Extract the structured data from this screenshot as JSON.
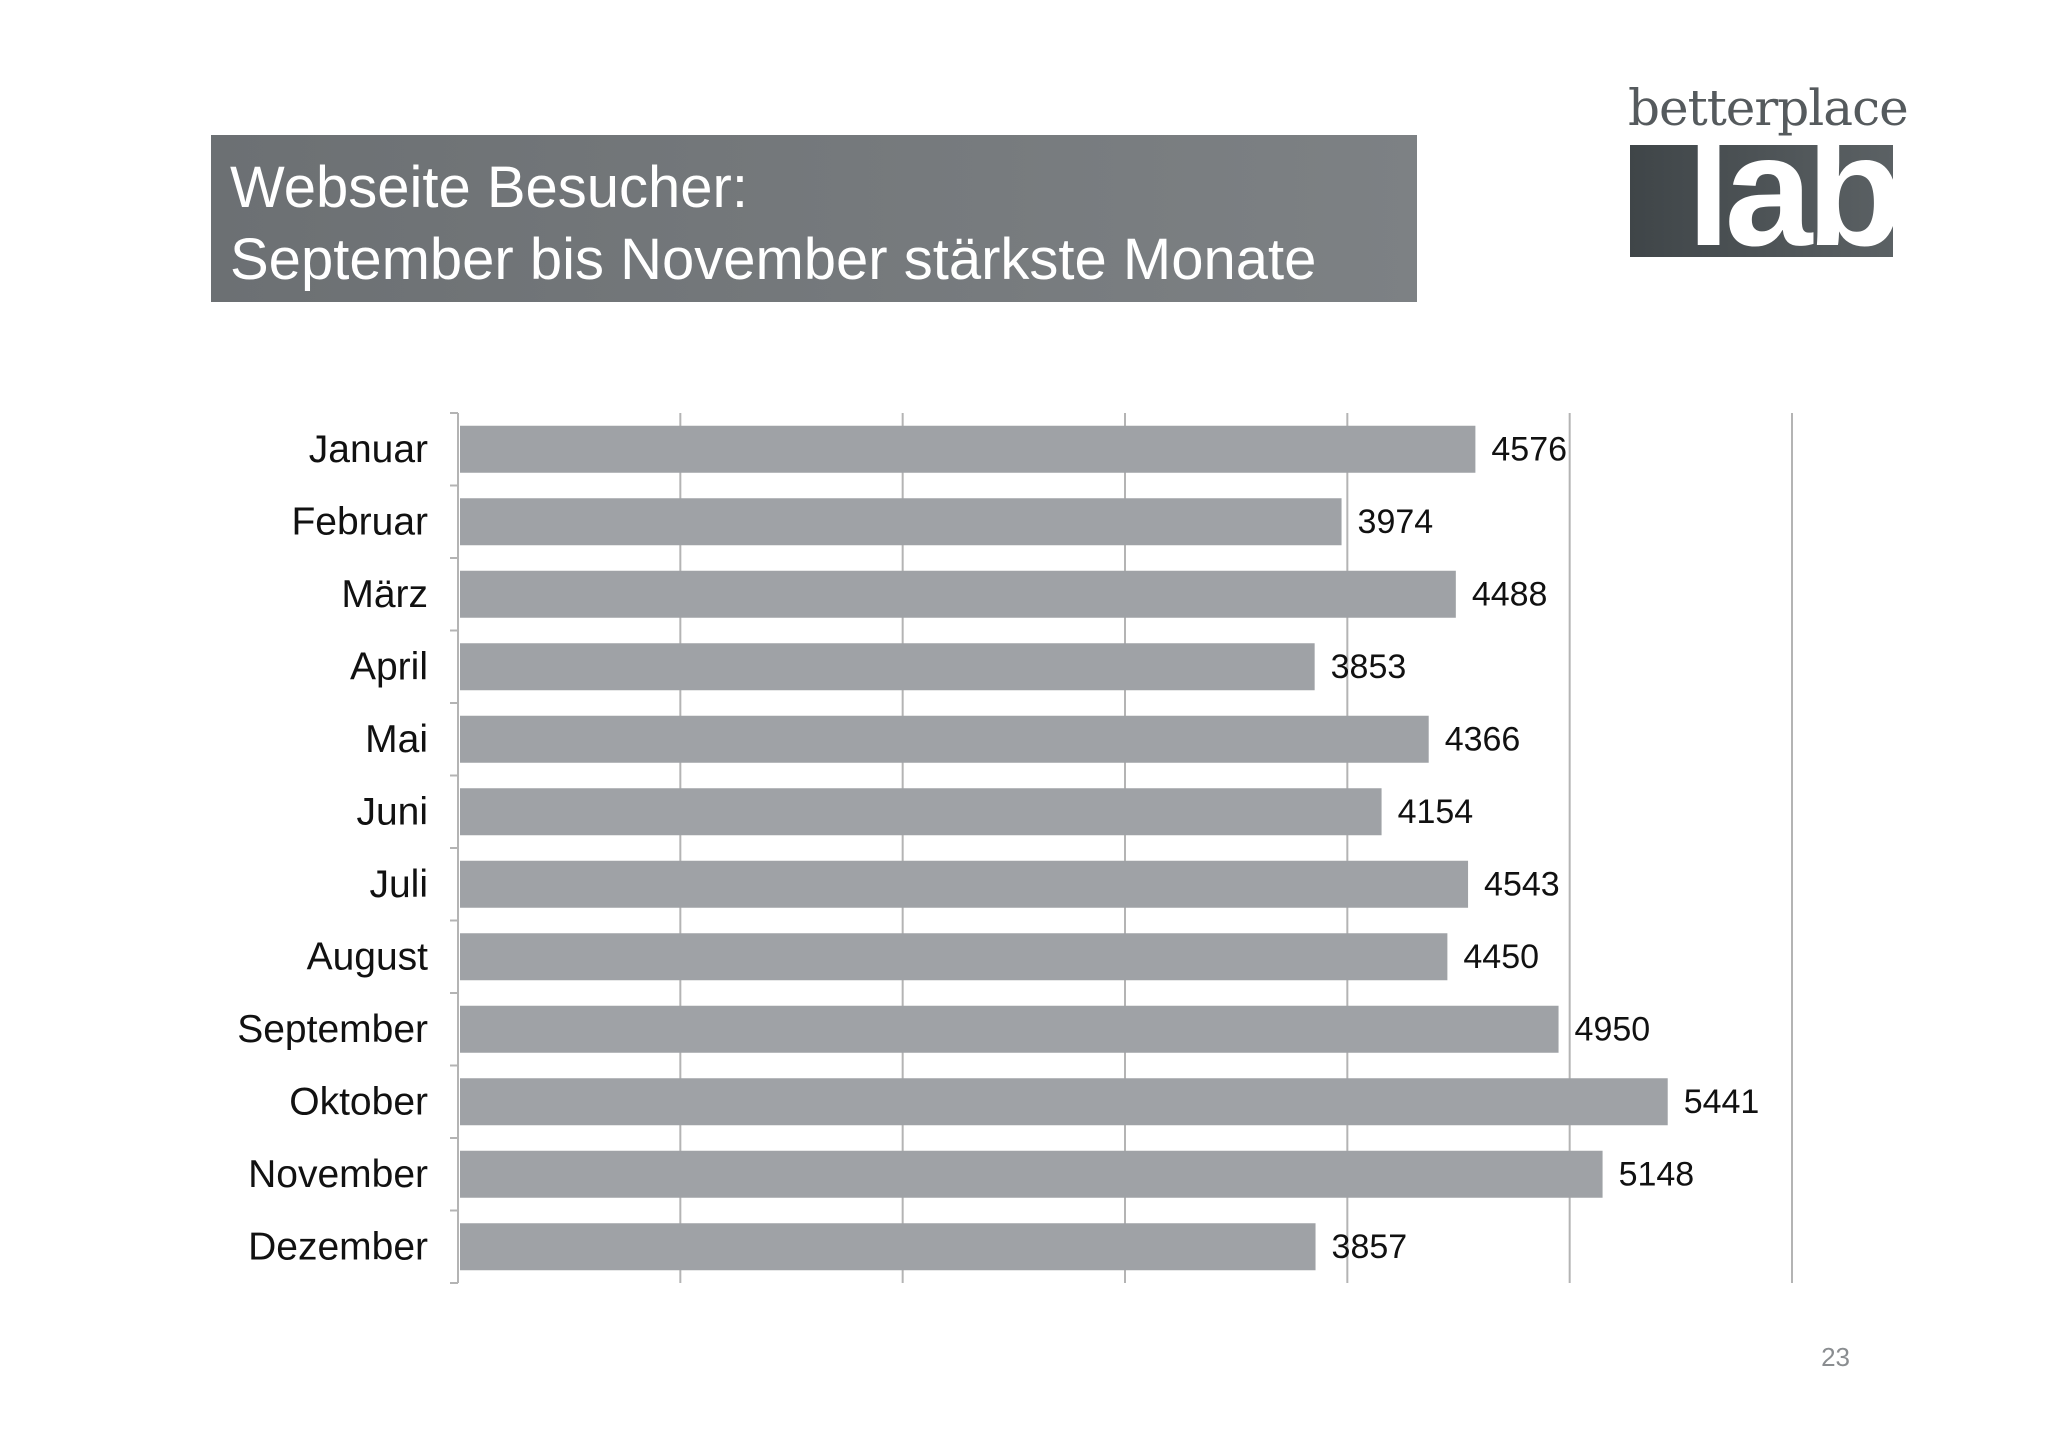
{
  "title": {
    "line1": "Webseite Besucher:",
    "line2": "September bis November stärkste Monate"
  },
  "logo": {
    "top_text": "betterplace",
    "block_text": "lab"
  },
  "page_number": "23",
  "colors": {
    "bar": "#9fa2a6",
    "title_background": "#75797c",
    "grid": "#b4b4b4"
  },
  "chart_data": {
    "type": "bar",
    "orientation": "horizontal",
    "categories": [
      "Januar",
      "Februar",
      "März",
      "April",
      "Mai",
      "Juni",
      "Juli",
      "August",
      "September",
      "Oktober",
      "November",
      "Dezember"
    ],
    "values": [
      4576,
      3974,
      4488,
      3853,
      4366,
      4154,
      4543,
      4450,
      4950,
      5441,
      5148,
      3857
    ],
    "data_labels": true,
    "xlim": [
      0,
      6000
    ],
    "grid": true,
    "legend": "none"
  }
}
